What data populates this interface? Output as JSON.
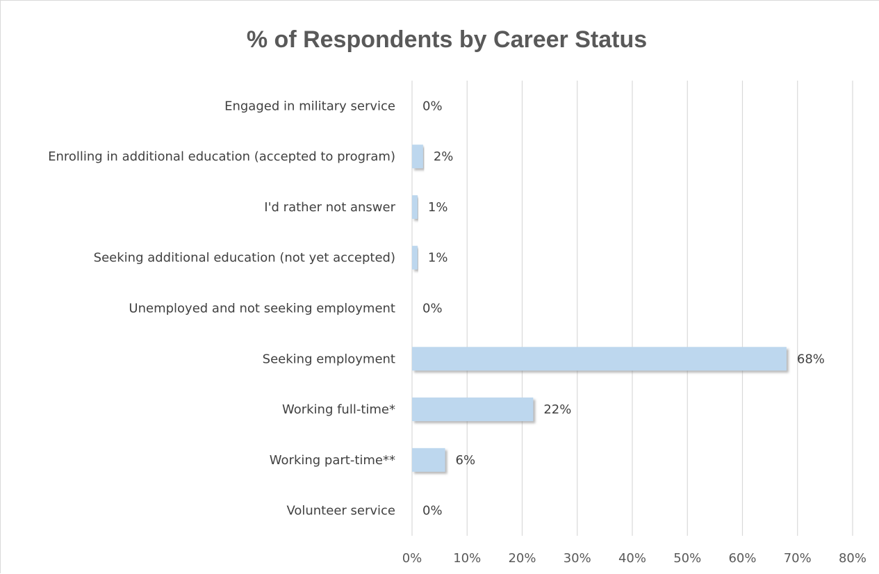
{
  "chart_data": {
    "type": "bar",
    "orientation": "horizontal",
    "title": "% of Respondents by Career Status",
    "xlabel": "",
    "ylabel": "",
    "categories": [
      "Engaged in military service",
      "Enrolling in additional education (accepted to program)",
      "I'd rather not answer",
      "Seeking additional education (not yet accepted)",
      "Unemployed and not seeking employment",
      "Seeking employment",
      "Working full-time*",
      "Working part-time**",
      "Volunteer service"
    ],
    "values": [
      0,
      2,
      1,
      1,
      0,
      68,
      22,
      6,
      0
    ],
    "data_labels": [
      "0%",
      "2%",
      "1%",
      "1%",
      "0%",
      "68%",
      "22%",
      "6%",
      "0%"
    ],
    "xlim": [
      0,
      80
    ],
    "x_ticks": [
      0,
      10,
      20,
      30,
      40,
      50,
      60,
      70,
      80
    ],
    "x_tick_labels": [
      "0%",
      "10%",
      "20%",
      "30%",
      "40%",
      "50%",
      "60%",
      "70%",
      "80%"
    ],
    "grid": "vertical",
    "legend": "none",
    "colors": {
      "bar_fill": "#bdd7ee",
      "bar_shadow": "#8c8c8c",
      "gridline": "#d9d9d9",
      "title": "#595959",
      "text": "#404040"
    }
  }
}
